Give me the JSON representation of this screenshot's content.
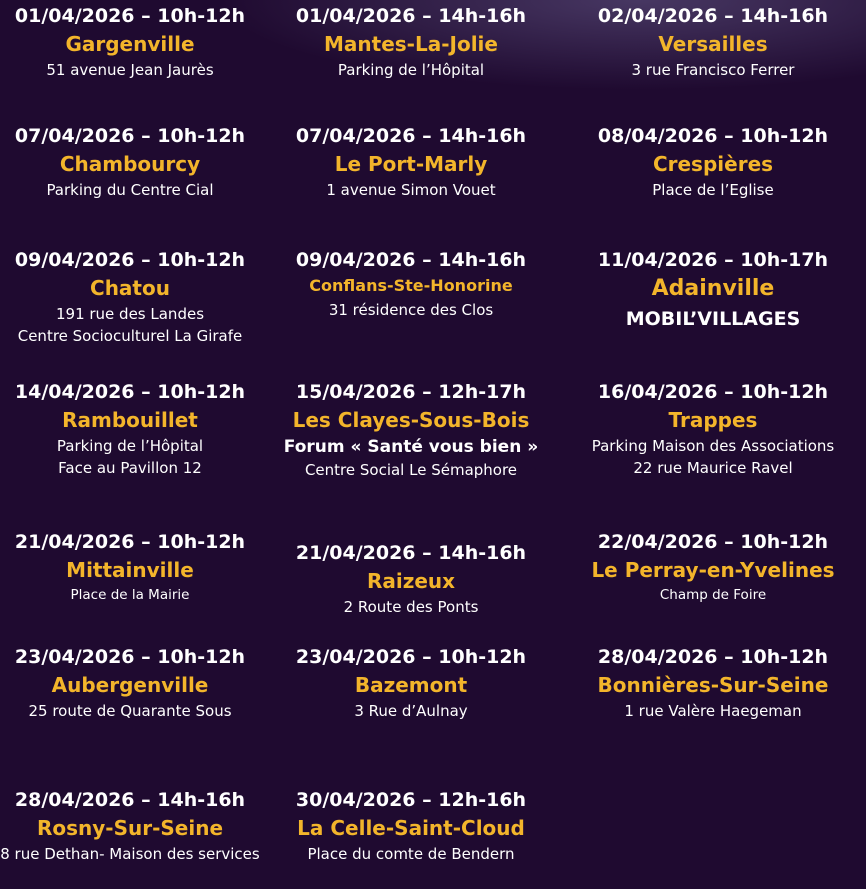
{
  "colors": {
    "background": "#1f0a30",
    "city": "#f3b52b",
    "text": "#ffffff"
  },
  "entries": [
    {
      "date": "01/04/2026 – 10h-12h",
      "city": "Gargenville",
      "lines": [
        "51 avenue Jean Jaurès"
      ]
    },
    {
      "date": "01/04/2026 – 14h-16h",
      "city": "Mantes-La-Jolie",
      "lines": [
        "Parking de l’Hôpital"
      ]
    },
    {
      "date": "02/04/2026 – 14h-16h",
      "city": "Versailles",
      "lines": [
        "3 rue Francisco Ferrer"
      ]
    },
    {
      "date": "07/04/2026 – 10h-12h",
      "city": "Chambourcy",
      "lines": [
        "Parking du Centre Cial"
      ]
    },
    {
      "date": "07/04/2026 – 14h-16h",
      "city": "Le Port-Marly",
      "lines": [
        "1 avenue Simon Vouet"
      ]
    },
    {
      "date": "08/04/2026 – 10h-12h",
      "city": "Crespières",
      "lines": [
        "Place de l’Eglise"
      ]
    },
    {
      "date": "09/04/2026 – 10h-12h",
      "city": "Chatou",
      "lines": [
        "191 rue des Landes",
        "Centre Socioculturel La Girafe"
      ]
    },
    {
      "date": "09/04/2026 – 14h-16h",
      "city": "Conflans-Ste-Honorine",
      "lines": [
        "31 résidence des Clos"
      ]
    },
    {
      "date": "11/04/2026 – 10h-17h",
      "city": "Adainville",
      "lines": [
        "MOBIL’VILLAGES"
      ]
    },
    {
      "date": "14/04/2026 – 10h-12h",
      "city": "Rambouillet",
      "lines": [
        "Parking de l’Hôpital",
        "Face au Pavillon 12"
      ]
    },
    {
      "date": "15/04/2026 – 12h-17h",
      "city": "Les Clayes-Sous-Bois",
      "lines": [
        "Forum « Santé vous bien »",
        "Centre Social Le Sémaphore"
      ]
    },
    {
      "date": "16/04/2026 – 10h-12h",
      "city": "Trappes",
      "lines": [
        "Parking Maison des Associations",
        "22 rue Maurice Ravel"
      ]
    },
    {
      "date": "21/04/2026 – 10h-12h",
      "city": "Mittainville",
      "lines": [
        "Place de la Mairie"
      ]
    },
    {
      "date": "21/04/2026 – 14h-16h",
      "city": "Raizeux",
      "lines": [
        "2 Route des Ponts"
      ]
    },
    {
      "date": "22/04/2026 – 10h-12h",
      "city": "Le Perray-en-Yvelines",
      "lines": [
        "Champ de Foire"
      ]
    },
    {
      "date": "23/04/2026 – 10h-12h",
      "city": "Aubergenville",
      "lines": [
        "25 route de Quarante Sous"
      ]
    },
    {
      "date": "23/04/2026 – 10h-12h",
      "city": "Bazemont",
      "lines": [
        "3 Rue d’Aulnay"
      ]
    },
    {
      "date": "28/04/2026 – 10h-12h",
      "city": "Bonnières-Sur-Seine",
      "lines": [
        "1 rue Valère Haegeman"
      ]
    },
    {
      "date": "28/04/2026 – 14h-16h",
      "city": "Rosny-Sur-Seine",
      "lines": [
        "8 rue Dethan- Maison des services"
      ]
    },
    {
      "date": "30/04/2026 – 12h-16h",
      "city": "La Celle-Saint-Cloud",
      "lines": [
        "Place du comte de Bendern"
      ]
    }
  ]
}
